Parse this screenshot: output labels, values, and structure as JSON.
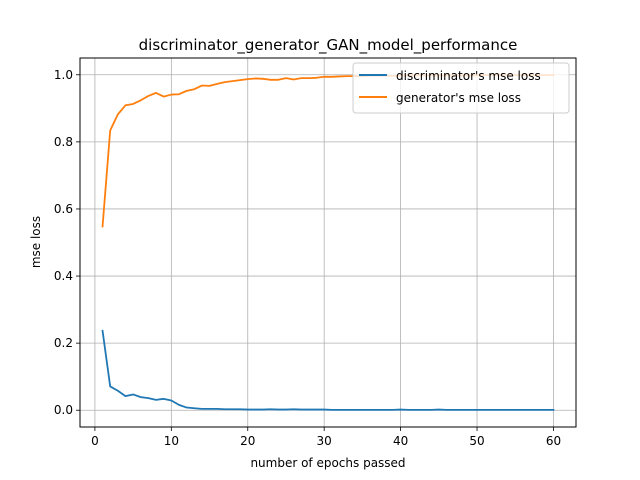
{
  "chart_data": {
    "type": "line",
    "title": "discriminator_generator_GAN_model_performance",
    "xlabel": "number of epochs passed",
    "ylabel": "mse loss",
    "xlim": [
      -1.95,
      62.95
    ],
    "ylim": [
      -0.05,
      1.05
    ],
    "xticks": [
      0,
      10,
      20,
      30,
      40,
      50,
      60
    ],
    "yticks": [
      0.0,
      0.2,
      0.4,
      0.6,
      0.8,
      1.0
    ],
    "xtick_labels": [
      "0",
      "10",
      "20",
      "30",
      "40",
      "50",
      "60"
    ],
    "ytick_labels": [
      "0.0",
      "0.2",
      "0.4",
      "0.6",
      "0.8",
      "1.0"
    ],
    "grid": true,
    "legend_position": "top-right",
    "x": [
      1,
      2,
      3,
      4,
      5,
      6,
      7,
      8,
      9,
      10,
      11,
      12,
      13,
      14,
      15,
      16,
      17,
      18,
      19,
      20,
      21,
      22,
      23,
      24,
      25,
      26,
      27,
      28,
      29,
      30,
      31,
      32,
      33,
      34,
      35,
      36,
      37,
      38,
      39,
      40,
      41,
      42,
      43,
      44,
      45,
      46,
      47,
      48,
      49,
      50,
      51,
      52,
      53,
      54,
      55,
      56,
      57,
      58,
      59,
      60
    ],
    "series": [
      {
        "name": "discriminator's mse loss",
        "color": "#1f77b4",
        "values": [
          0.237,
          0.071,
          0.058,
          0.042,
          0.047,
          0.039,
          0.036,
          0.031,
          0.034,
          0.029,
          0.016,
          0.008,
          0.006,
          0.004,
          0.004,
          0.004,
          0.003,
          0.003,
          0.003,
          0.002,
          0.002,
          0.002,
          0.003,
          0.002,
          0.002,
          0.003,
          0.002,
          0.002,
          0.002,
          0.002,
          0.001,
          0.001,
          0.001,
          0.001,
          0.001,
          0.001,
          0.001,
          0.001,
          0.001,
          0.002,
          0.001,
          0.001,
          0.001,
          0.001,
          0.002,
          0.001,
          0.001,
          0.001,
          0.001,
          0.001,
          0.001,
          0.001,
          0.001,
          0.001,
          0.001,
          0.001,
          0.001,
          0.001,
          0.001,
          0.001
        ]
      },
      {
        "name": "generator's mse loss",
        "color": "#ff7f0e",
        "values": [
          0.548,
          0.834,
          0.882,
          0.909,
          0.913,
          0.924,
          0.937,
          0.946,
          0.935,
          0.941,
          0.942,
          0.952,
          0.957,
          0.968,
          0.967,
          0.973,
          0.978,
          0.981,
          0.984,
          0.987,
          0.989,
          0.988,
          0.985,
          0.985,
          0.99,
          0.986,
          0.99,
          0.99,
          0.991,
          0.994,
          0.994,
          0.995,
          0.996,
          0.996,
          0.996,
          0.997,
          0.997,
          0.997,
          0.997,
          0.997,
          0.998,
          0.998,
          0.998,
          0.998,
          0.998,
          0.998,
          0.998,
          0.998,
          0.998,
          0.998,
          0.999,
          0.999,
          0.999,
          0.999,
          0.999,
          0.999,
          0.999,
          0.999,
          0.999,
          0.999
        ]
      }
    ]
  }
}
